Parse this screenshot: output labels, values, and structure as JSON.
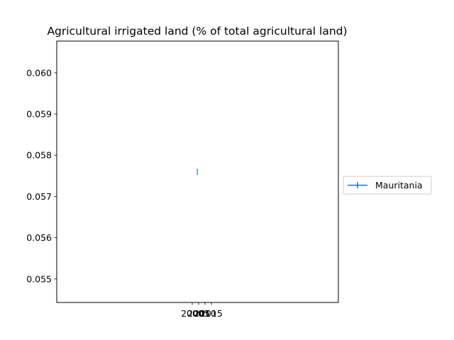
{
  "chart_data": {
    "type": "line",
    "title": "Agricultural irrigated land (% of total agricultural land)",
    "xlabel": "",
    "ylabel": "",
    "x_ticks": [
      2000,
      2005,
      2010,
      2015
    ],
    "x_tick_labels": [
      "2000",
      "2005",
      "2010",
      "2015"
    ],
    "y_ticks": [
      0.055,
      0.056,
      0.057,
      0.058,
      0.059,
      0.06
    ],
    "y_tick_labels": [
      "0.055",
      "0.056",
      "0.057",
      "0.058",
      "0.059",
      "0.060"
    ],
    "ylim": [
      0.05443,
      0.06077
    ],
    "series": [
      {
        "name": "Mauritania",
        "color": "#1f77b4",
        "marker": "|",
        "x": [
          2004
        ],
        "y": [
          0.0576
        ]
      }
    ],
    "legend": {
      "position": "center-right",
      "entries": [
        "Mauritania"
      ]
    },
    "grid": false
  }
}
